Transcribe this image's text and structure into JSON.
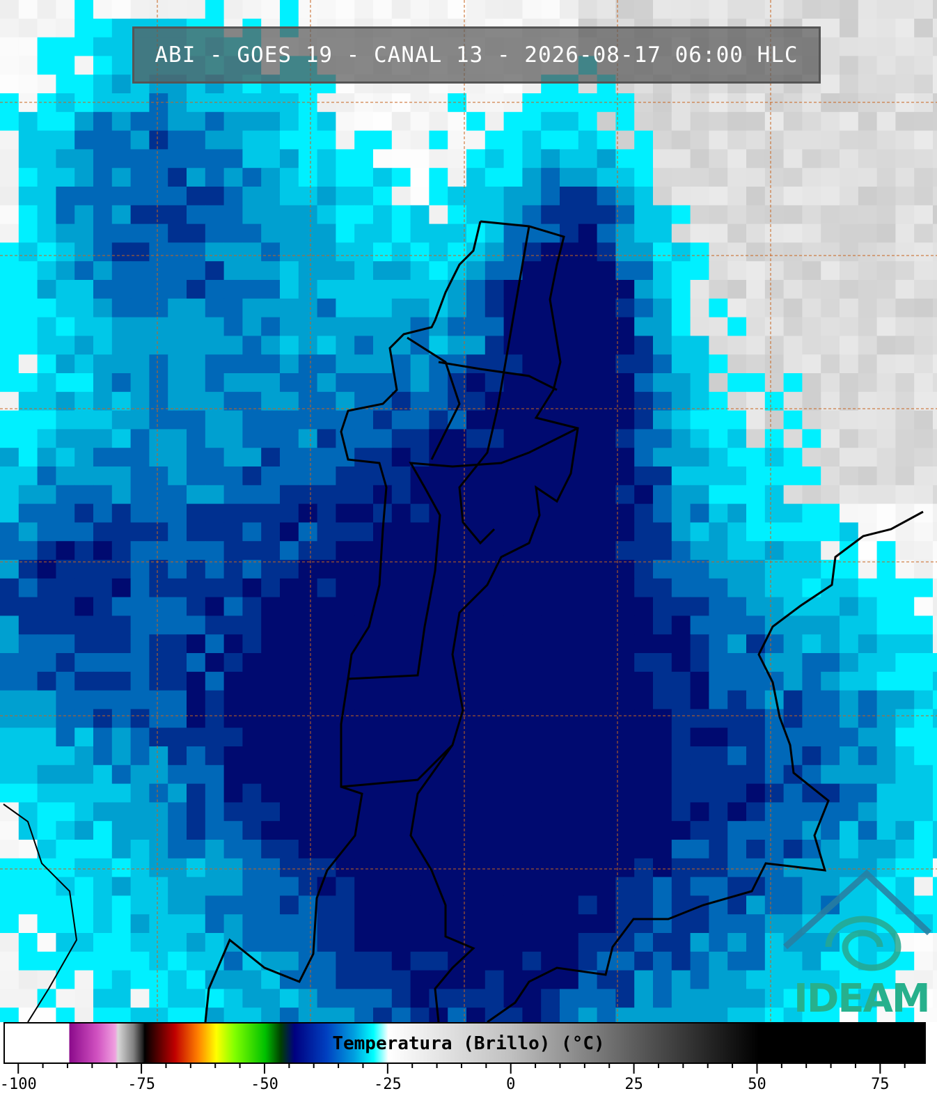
{
  "header": {
    "title": "ABI - GOES 19 - CANAL 13 - 2026-08-17 06:00 HLC"
  },
  "colorbar": {
    "label": "Temperatura (Brillo) (°C)",
    "xlim": [
      -103,
      84
    ],
    "xticks": [
      -100,
      -75,
      -50,
      -25,
      0,
      25,
      50,
      75
    ]
  },
  "logo": {
    "text": "IDEAM"
  }
}
